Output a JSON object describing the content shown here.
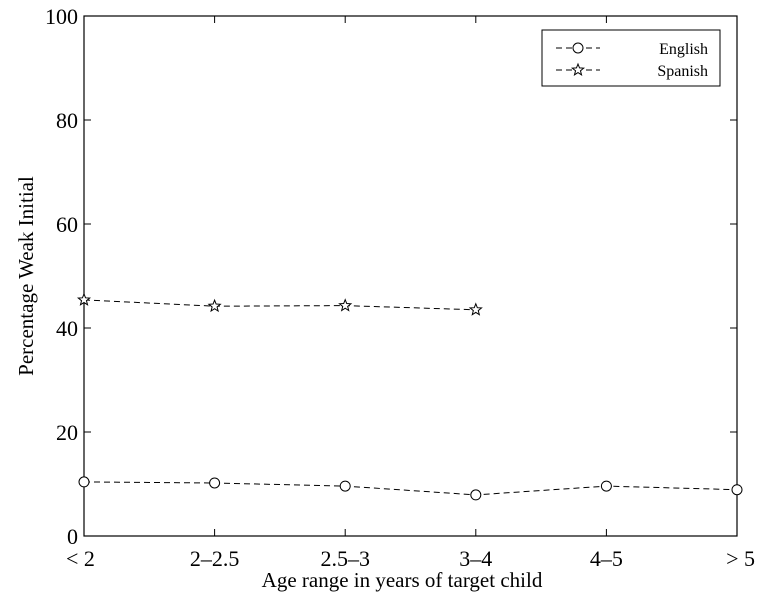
{
  "chart_data": {
    "type": "line",
    "categories": [
      "< 2",
      "2–2.5",
      "2.5–3",
      "3–4",
      "4–5",
      "> 5"
    ],
    "series": [
      {
        "name": "English",
        "marker": "circle",
        "line_style": "dashed",
        "values": [
          10.4,
          10.2,
          9.6,
          7.9,
          9.6,
          8.9
        ]
      },
      {
        "name": "Spanish",
        "marker": "star",
        "line_style": "dashed",
        "values": [
          45.4,
          44.2,
          44.3,
          43.5,
          null,
          null
        ]
      }
    ],
    "title": "",
    "xlabel": "Age range in years of target child",
    "ylabel": "Percentage Weak Initial",
    "ylim": [
      0,
      100
    ],
    "yticks": [
      0,
      20,
      40,
      60,
      80,
      100
    ],
    "grid": false,
    "legend_position": "top-right",
    "colors": {
      "line": "#000000",
      "background": "#ffffff"
    }
  }
}
